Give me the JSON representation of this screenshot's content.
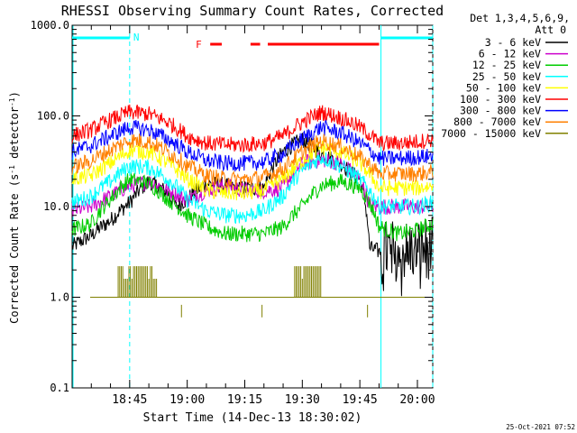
{
  "chart_data": {
    "type": "line",
    "title": "RHESSI Observing Summary Count Rates, Corrected",
    "xlabel": "Start Time (14-Dec-13 18:30:02)",
    "ylabel": "Corrected Count Rate (s",
    "ylabel_sup1": "-1",
    "ylabel_mid": " detector",
    "ylabel_sup2": "-1",
    "ylabel_end": ")",
    "yscale": "log",
    "ylim": [
      0.1,
      1000
    ],
    "xlim_minutes": [
      0,
      94
    ],
    "x_ticks": [
      {
        "label": "18:45",
        "min": 15
      },
      {
        "label": "19:00",
        "min": 30
      },
      {
        "label": "19:15",
        "min": 45
      },
      {
        "label": "19:30",
        "min": 60
      },
      {
        "label": "19:45",
        "min": 75
      },
      {
        "label": "20:00",
        "min": 90
      }
    ],
    "y_ticks": [
      {
        "label": "0.1",
        "value": 0.1
      },
      {
        "label": "1.0",
        "value": 1
      },
      {
        "label": "10.0",
        "value": 10
      },
      {
        "label": "100.0",
        "value": 100
      },
      {
        "label": "1000.0",
        "value": 1000
      }
    ],
    "legend_header": [
      "Det 1,3,4,5,6,9,",
      "Att 0"
    ],
    "series": [
      {
        "name": "3 - 6 keV",
        "color": "#000000",
        "x": [
          0,
          5,
          10,
          15,
          20,
          25,
          27,
          30,
          35,
          40,
          45,
          50,
          55,
          60,
          65,
          70,
          72.5,
          75,
          77.5,
          80,
          85,
          90,
          94
        ],
        "y": [
          3.6,
          4.8,
          7,
          11,
          19,
          14,
          10,
          12,
          18,
          17,
          16,
          16,
          40,
          55,
          38,
          30,
          24,
          20,
          3.5,
          3.2,
          3.3,
          3.4,
          3.5
        ]
      },
      {
        "name": "6 - 12 keV",
        "color": "#cc00cc",
        "x": [
          0,
          5,
          10,
          15,
          20,
          25,
          30,
          35,
          40,
          45,
          50,
          55,
          60,
          65,
          70,
          72.5,
          75,
          77.5,
          80,
          85,
          90,
          94
        ],
        "y": [
          9,
          10,
          13,
          17,
          19,
          15,
          12,
          15,
          17,
          15,
          15,
          16,
          30,
          33,
          30,
          25,
          20,
          10,
          10,
          10,
          10,
          10
        ]
      },
      {
        "name": "12 - 25 keV",
        "color": "#00cc00",
        "x": [
          0,
          5,
          10,
          15,
          20,
          25,
          30,
          35,
          40,
          45,
          50,
          55,
          60,
          65,
          70,
          75,
          80,
          85,
          90,
          94
        ],
        "y": [
          5.5,
          6.5,
          12,
          20,
          18,
          12,
          8,
          6,
          5,
          5,
          5,
          6,
          10,
          17,
          19,
          16,
          6,
          5,
          5.5,
          6.5
        ]
      },
      {
        "name": "25 - 50 keV",
        "color": "#00ffff",
        "x": [
          0,
          5,
          10,
          15,
          20,
          25,
          30,
          35,
          40,
          45,
          50,
          55,
          60,
          65,
          70,
          75,
          80,
          85,
          90,
          94
        ],
        "y": [
          11,
          13,
          19,
          28,
          27,
          20,
          12,
          9,
          8,
          8,
          9,
          13,
          25,
          35,
          28,
          20,
          10,
          10,
          10,
          11
        ]
      },
      {
        "name": "50 - 100 keV",
        "color": "#ffff00",
        "x": [
          0,
          5,
          10,
          15,
          20,
          25,
          30,
          35,
          40,
          45,
          50,
          55,
          60,
          65,
          70,
          75,
          80,
          85,
          90,
          94
        ],
        "y": [
          20,
          22,
          30,
          42,
          40,
          30,
          20,
          15,
          14,
          14,
          15,
          20,
          32,
          45,
          40,
          30,
          16,
          16,
          16,
          17
        ]
      },
      {
        "name": "100 - 300 keV",
        "color": "#ff0000",
        "x": [
          0,
          5,
          10,
          15,
          20,
          25,
          30,
          35,
          40,
          45,
          50,
          55,
          60,
          65,
          70,
          75,
          80,
          85,
          90,
          94
        ],
        "y": [
          60,
          70,
          90,
          110,
          105,
          85,
          60,
          50,
          48,
          48,
          50,
          60,
          85,
          110,
          95,
          75,
          50,
          50,
          52,
          55
        ]
      },
      {
        "name": "300 - 800 keV",
        "color": "#0000ff",
        "x": [
          0,
          5,
          10,
          15,
          20,
          25,
          30,
          35,
          40,
          45,
          50,
          55,
          60,
          65,
          70,
          75,
          80,
          85,
          90,
          94
        ],
        "y": [
          40,
          47,
          60,
          75,
          70,
          55,
          40,
          32,
          30,
          30,
          31,
          38,
          55,
          75,
          65,
          50,
          34,
          34,
          35,
          36
        ]
      },
      {
        "name": "800 - 7000 keV",
        "color": "#ff8000",
        "x": [
          0,
          5,
          10,
          15,
          20,
          25,
          30,
          35,
          40,
          45,
          50,
          55,
          60,
          65,
          70,
          75,
          80,
          85,
          90,
          94
        ],
        "y": [
          27,
          32,
          42,
          54,
          52,
          40,
          28,
          22,
          20,
          20,
          21,
          26,
          40,
          53,
          46,
          35,
          23,
          23,
          23,
          24
        ]
      },
      {
        "name": "7000 - 15000 keV",
        "color": "#808000",
        "x": [
          0,
          12,
          14,
          22,
          23,
          45,
          55,
          58,
          65,
          67,
          94
        ],
        "y": [
          1,
          1,
          2.2,
          2.2,
          1,
          1,
          1,
          2.2,
          2.2,
          1,
          1
        ]
      }
    ],
    "event_markers": [
      {
        "label": "N",
        "color": "#00ffff",
        "start_min": 0,
        "end_min": 15
      },
      {
        "label": "N",
        "color": "#00ffff",
        "start_min": 80.5,
        "end_min": 94
      },
      {
        "label": "F",
        "color": "#ff0000",
        "start_min": 35.5,
        "end_min": 80
      }
    ],
    "eclipse_lines_min": [
      15,
      80.5,
      94
    ],
    "footer_date": "25-Oct-2021 07:52"
  }
}
